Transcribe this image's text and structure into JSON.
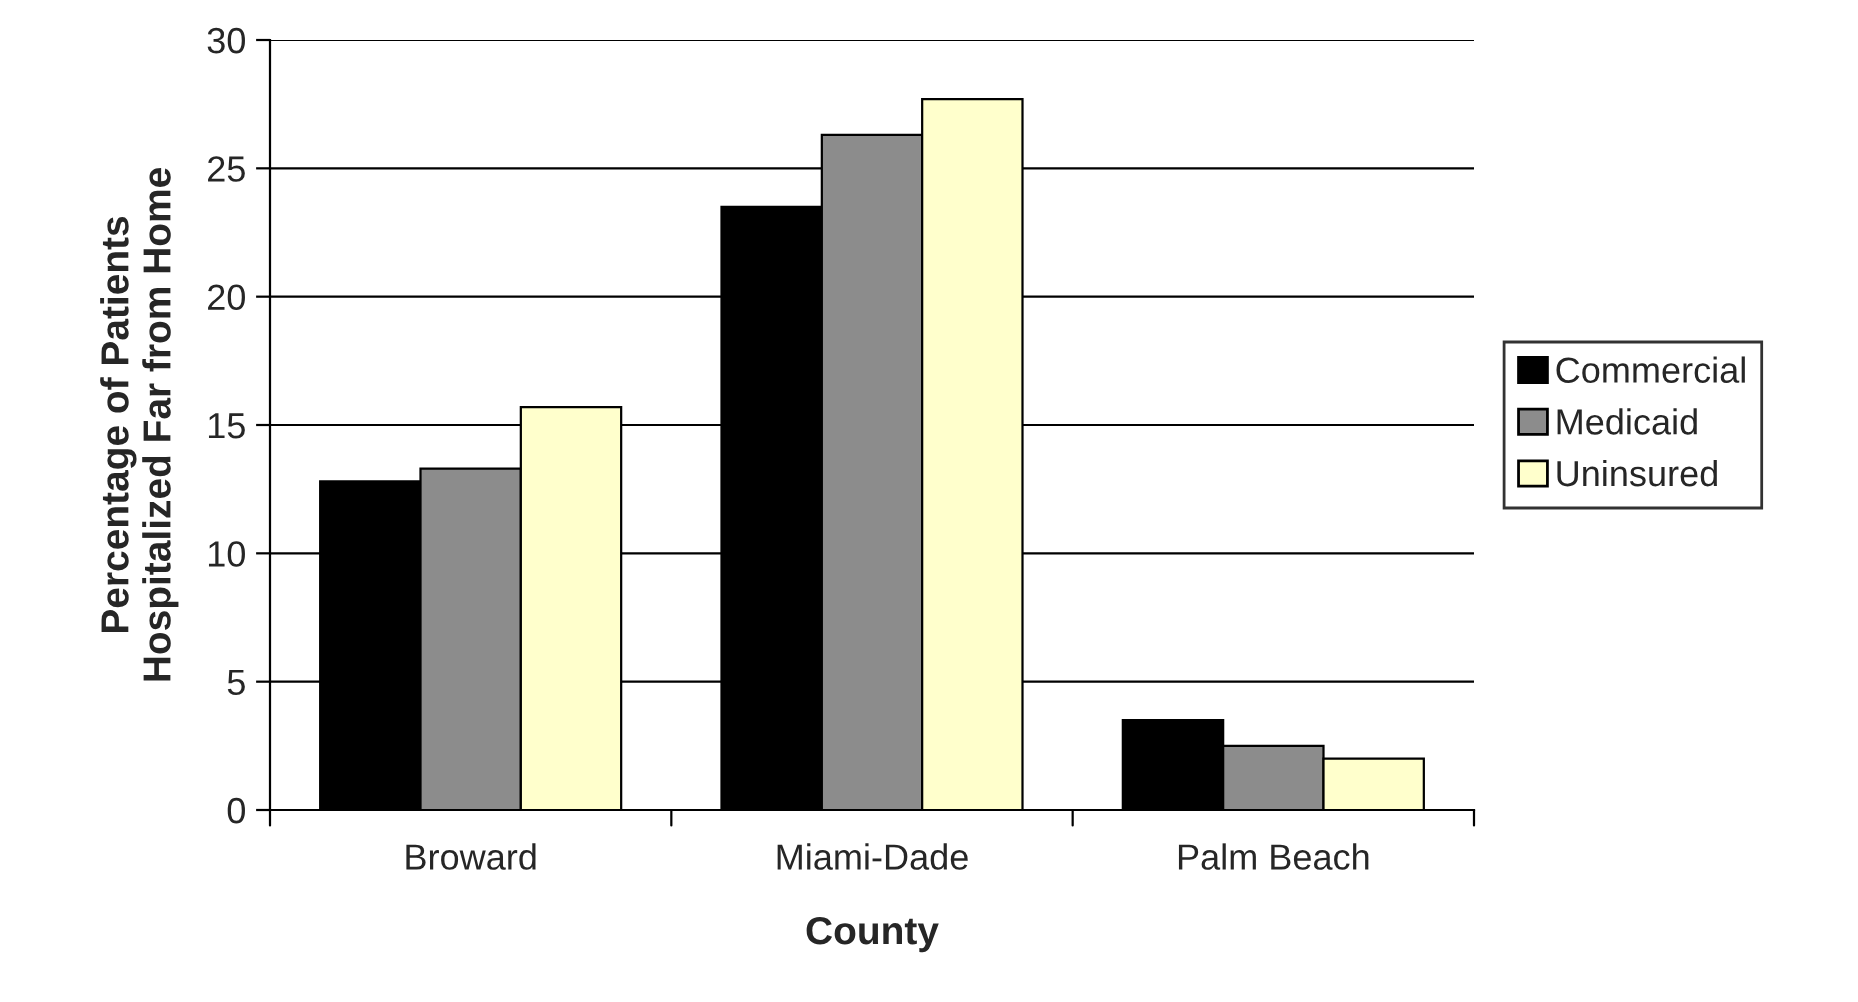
{
  "chart_data": {
    "type": "bar",
    "xlabel": "County",
    "ylabel": "Percentage of Patients\nHospitalized Far from Home",
    "categories": [
      "Broward",
      "Miami-Dade",
      "Palm Beach"
    ],
    "series": [
      {
        "name": "Commercial",
        "color": "#000000",
        "values": [
          12.8,
          23.5,
          3.5
        ]
      },
      {
        "name": "Medicaid",
        "color": "#8c8c8c",
        "values": [
          13.3,
          26.3,
          2.5
        ]
      },
      {
        "name": "Uninsured",
        "color": "#ffffcc",
        "values": [
          15.7,
          27.7,
          2.0
        ]
      }
    ],
    "ylim": [
      0,
      30
    ],
    "yticks": [
      0,
      5,
      10,
      15,
      20,
      25,
      30
    ],
    "grid": "y",
    "legend": "right"
  }
}
